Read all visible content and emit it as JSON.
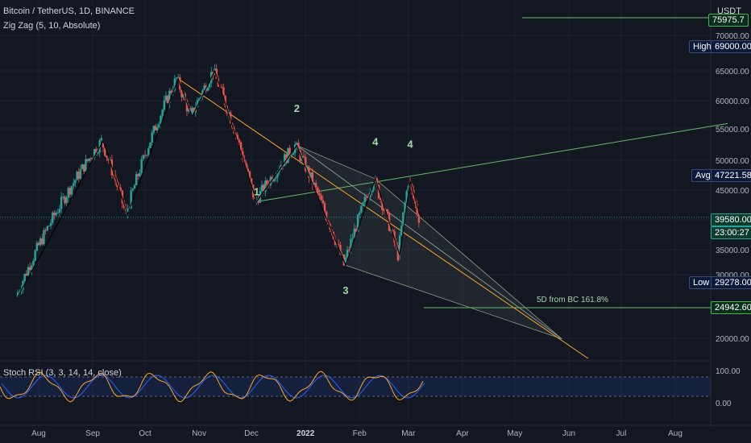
{
  "header": {
    "title": "Bitcoin / TetherUS, 1D, BINANCE",
    "indicator": "Zig Zag (5, 10, Absolute)",
    "currency": "USDT"
  },
  "colors": {
    "background": "#131722",
    "up": "#26a69a",
    "down": "#ef5350",
    "zigzag": "#000000",
    "trendline_green": "#66bb6a",
    "trendline_orange": "#ffa726",
    "rsi_k": "#ffa726",
    "rsi_d": "#2962ff",
    "text": "#b2b5be"
  },
  "price_scale": {
    "ticks": [
      "70000.00",
      "65000.00",
      "60000.00",
      "55000.00",
      "50000.00",
      "45000.00",
      "40000.00",
      "35000.00",
      "30000.00",
      "20000.00"
    ],
    "top_label": "75975.7",
    "high": {
      "label": "High",
      "value": "69000.00"
    },
    "avg": {
      "label": "Avg",
      "value": "47221.58"
    },
    "low": {
      "label": "Low",
      "value": "29278.00"
    },
    "last_price": "39580.00",
    "countdown": "23:00:27",
    "level": "24942.60"
  },
  "time_axis": [
    "Aug",
    "Sep",
    "Oct",
    "Nov",
    "Dec",
    "2022",
    "Feb",
    "Mar",
    "Apr",
    "May",
    "Jun",
    "Jul",
    "Aug"
  ],
  "wave_labels": [
    {
      "text": "1",
      "x": "2021-12-04",
      "y": 43000
    },
    {
      "text": "2",
      "x": "2021-12-27",
      "y": 59000
    },
    {
      "text": "3",
      "x": "2022-01-24",
      "y": 29600
    },
    {
      "text": "4",
      "x": "2022-02-10",
      "y": 52000
    },
    {
      "text": "4",
      "x": "2022-03-02",
      "y": 51500
    }
  ],
  "annotation": "5D from BC 161.8%",
  "rsi": {
    "title": "Stoch RSI (3, 3, 14, 14, close)",
    "ticks": [
      "100.00",
      "0.00"
    ]
  },
  "chart_data": {
    "type": "candlestick",
    "x_range": [
      "2021-07-01",
      "2022-08-31"
    ],
    "y_range": [
      15000,
      78000
    ],
    "zigzag": [
      {
        "x": "2021-07-20",
        "y": 29278
      },
      {
        "x": "2021-09-07",
        "y": 52900
      },
      {
        "x": "2021-09-21",
        "y": 40000
      },
      {
        "x": "2021-10-20",
        "y": 67000
      },
      {
        "x": "2021-10-28",
        "y": 58000
      },
      {
        "x": "2021-11-10",
        "y": 69000
      },
      {
        "x": "2021-12-04",
        "y": 42000
      },
      {
        "x": "2021-12-27",
        "y": 52000
      },
      {
        "x": "2022-01-24",
        "y": 33000
      },
      {
        "x": "2022-02-10",
        "y": 45800
      },
      {
        "x": "2022-02-24",
        "y": 34300
      },
      {
        "x": "2022-03-02",
        "y": 45400
      },
      {
        "x": "2022-03-08",
        "y": 39580
      }
    ],
    "trendlines": [
      {
        "color": "green",
        "points": [
          {
            "x": "2021-12-04",
            "y": 42000
          },
          {
            "x": "2022-08-31",
            "y": 56500
          }
        ]
      },
      {
        "color": "orange",
        "points": [
          {
            "x": "2021-10-20",
            "y": 67000
          },
          {
            "x": "2022-06-12",
            "y": 14000
          }
        ]
      }
    ],
    "harmonic_triangles": [
      [
        {
          "x": "2021-12-27",
          "y": 52000
        },
        {
          "x": "2022-01-24",
          "y": 33000
        },
        {
          "x": "2022-05-28",
          "y": 24942.6
        }
      ],
      [
        {
          "x": "2021-12-27",
          "y": 52000
        },
        {
          "x": "2022-02-10",
          "y": 45800
        },
        {
          "x": "2022-05-28",
          "y": 24942.6
        }
      ]
    ]
  }
}
